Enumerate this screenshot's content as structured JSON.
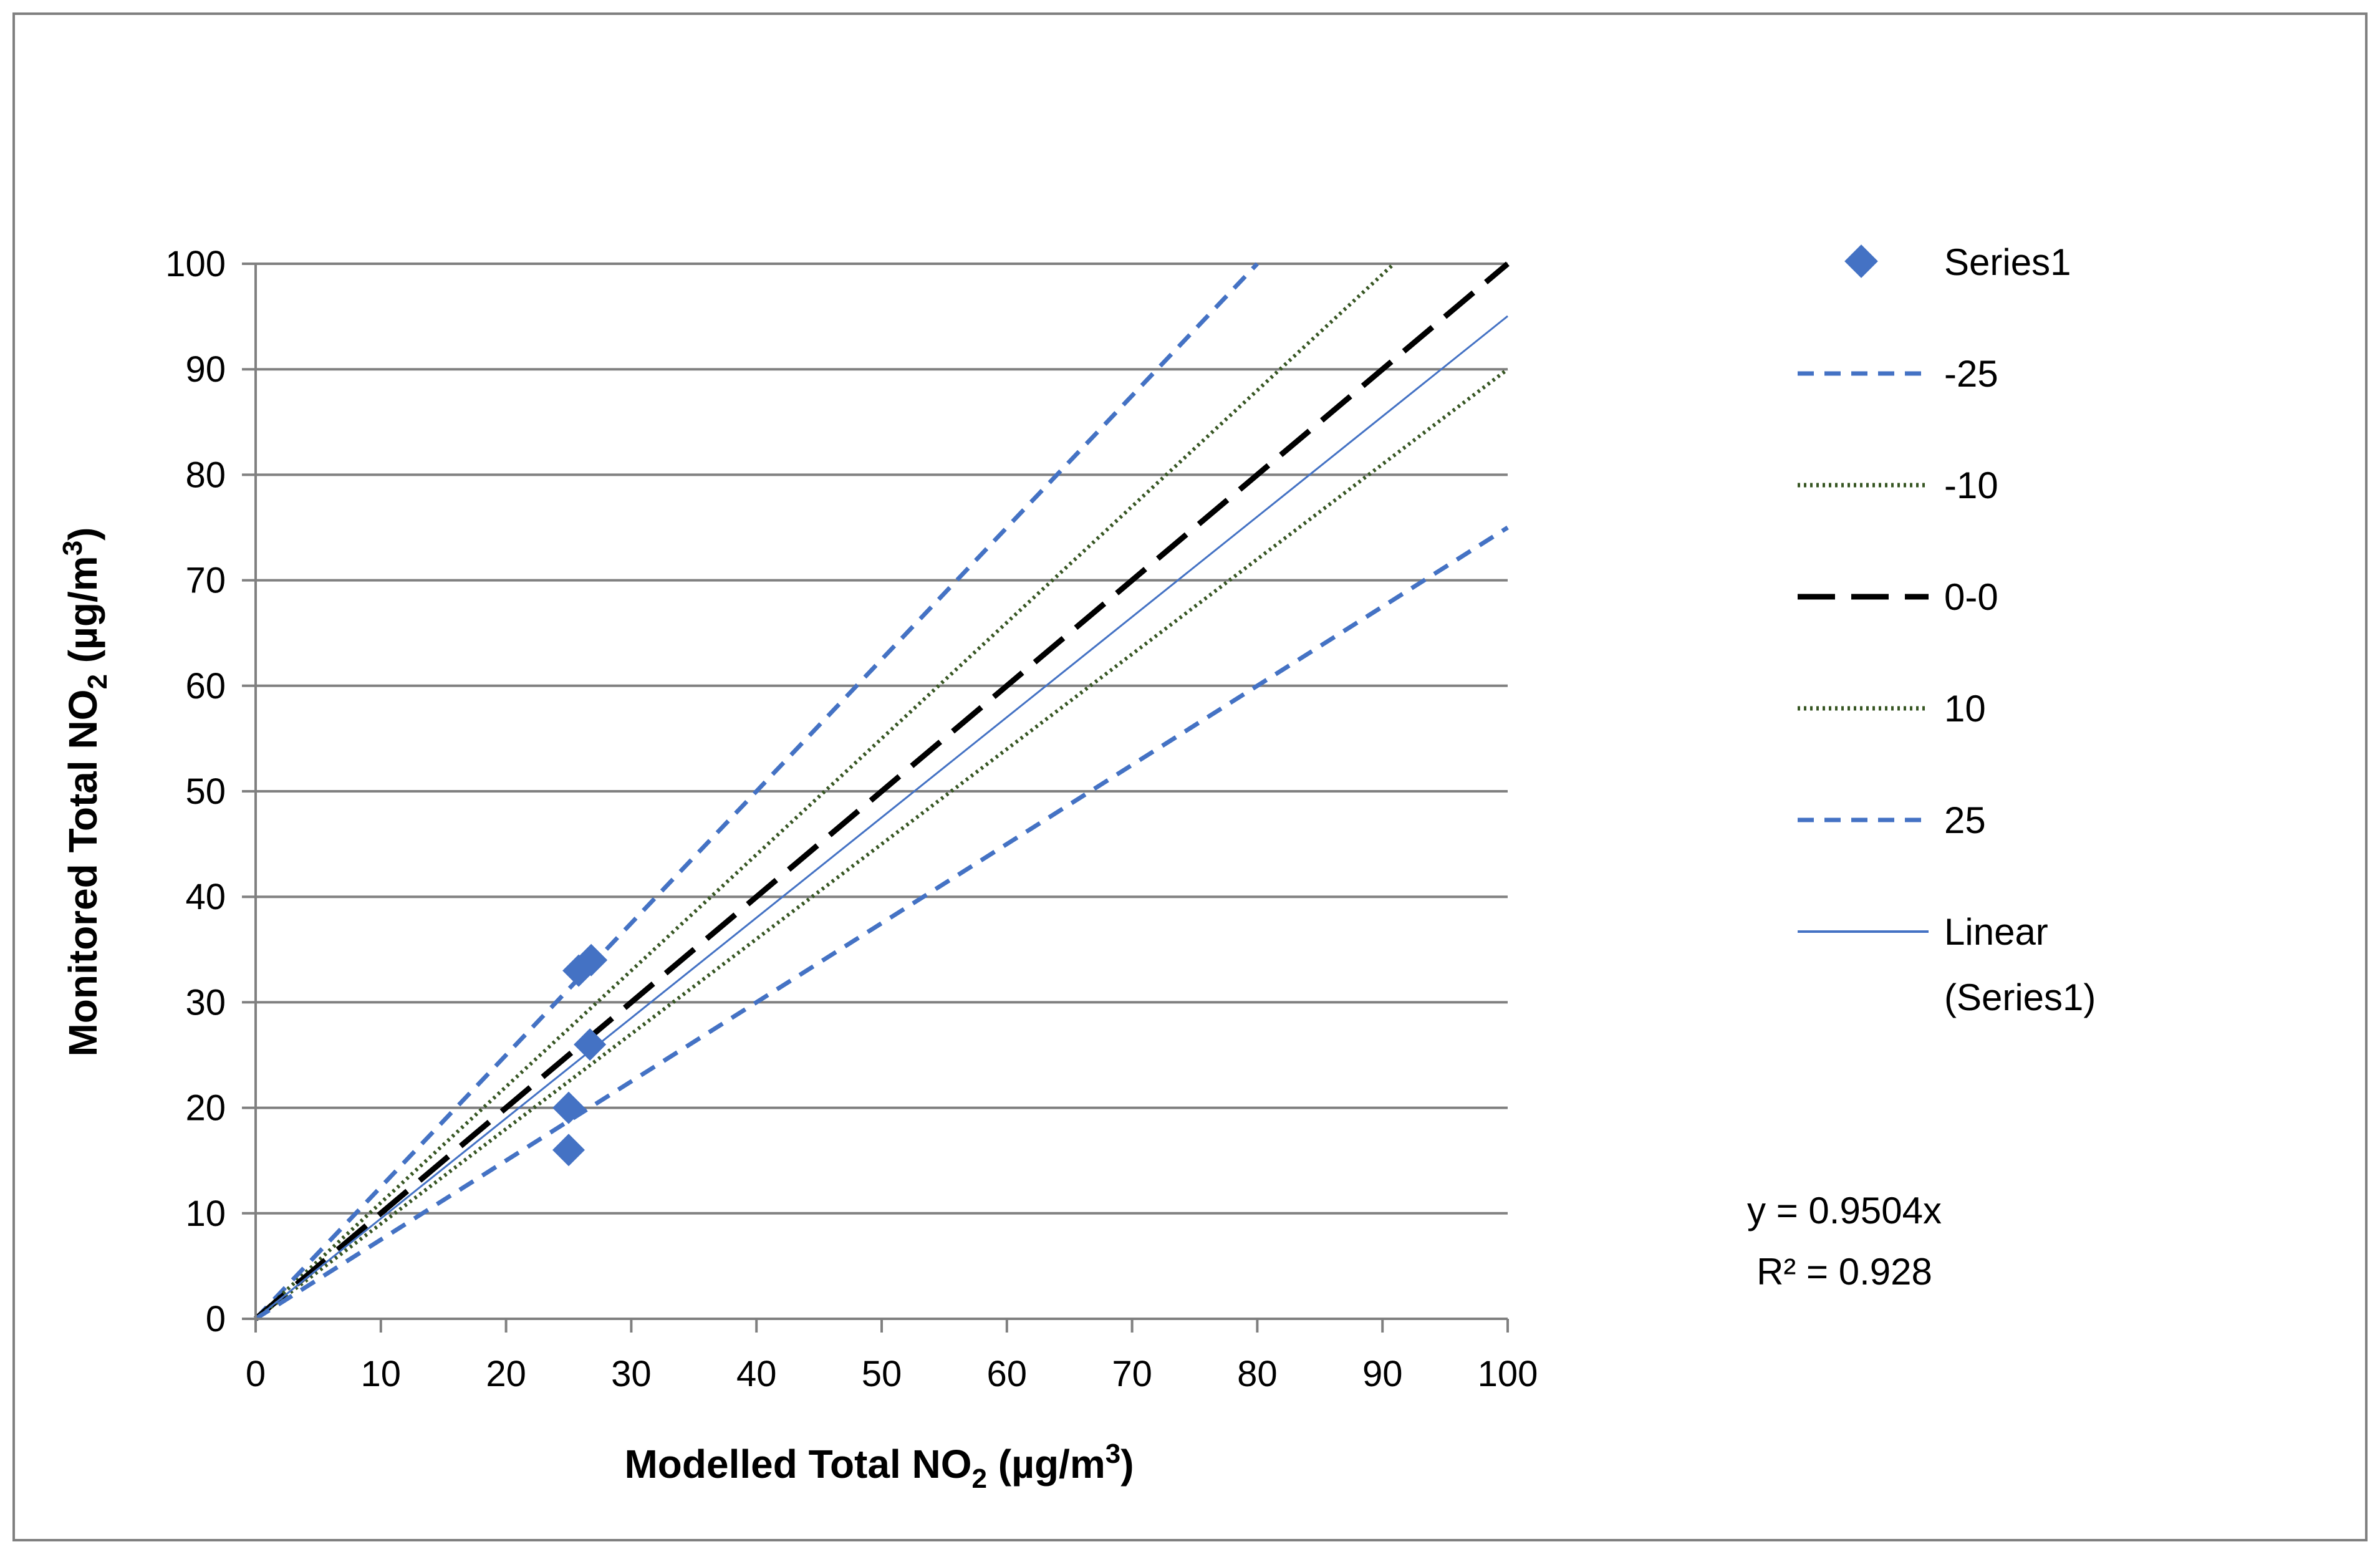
{
  "chart_data": {
    "type": "scatter",
    "title": "",
    "xlabel": {
      "main": "Modelled Total NO",
      "sub": "2",
      "unit_pre": " (µg/m",
      "sup": "3",
      "unit_post": ")"
    },
    "ylabel": {
      "main": "Monitored Total NO",
      "sub": "2",
      "unit_pre": " (µg/m",
      "sup": "3",
      "unit_post": ")"
    },
    "xlim": [
      0,
      100
    ],
    "ylim": [
      0,
      100
    ],
    "xticks": [
      "0",
      "10",
      "20",
      "30",
      "40",
      "50",
      "60",
      "70",
      "80",
      "90",
      "100"
    ],
    "yticks": [
      "0",
      "10",
      "20",
      "30",
      "40",
      "50",
      "60",
      "70",
      "80",
      "90",
      "100"
    ],
    "grid": "horizontal",
    "legend_position": "right",
    "scatter_series": {
      "name": "Series1",
      "color": "#4472c4",
      "points": [
        {
          "x": 25.0,
          "y": 16.0
        },
        {
          "x": 25.0,
          "y": 20.0
        },
        {
          "x": 26.7,
          "y": 26.0
        },
        {
          "x": 25.8,
          "y": 33.0
        },
        {
          "x": 26.8,
          "y": 34.0
        }
      ]
    },
    "reference_lines": [
      {
        "name": "-25",
        "slope": 1.25,
        "style": "dash",
        "color": "#4472c4"
      },
      {
        "name": "-10",
        "slope": 1.1,
        "style": "dot",
        "color": "#375623"
      },
      {
        "name": "0-0",
        "slope": 1.0,
        "style": "longdash",
        "color": "#000000"
      },
      {
        "name": "10",
        "slope": 0.9,
        "style": "dot",
        "color": "#375623"
      },
      {
        "name": "25",
        "slope": 0.75,
        "style": "dash",
        "color": "#4472c4"
      }
    ],
    "trendline": {
      "name_line1": "Linear",
      "name_line2": "(Series1)",
      "slope": 0.9504,
      "color": "#4472c4",
      "equation": "y = 0.9504x",
      "r_squared": "R² = 0.928"
    }
  },
  "colors": {
    "grid": "#808080",
    "axis": "#808080",
    "border": "#808080"
  }
}
